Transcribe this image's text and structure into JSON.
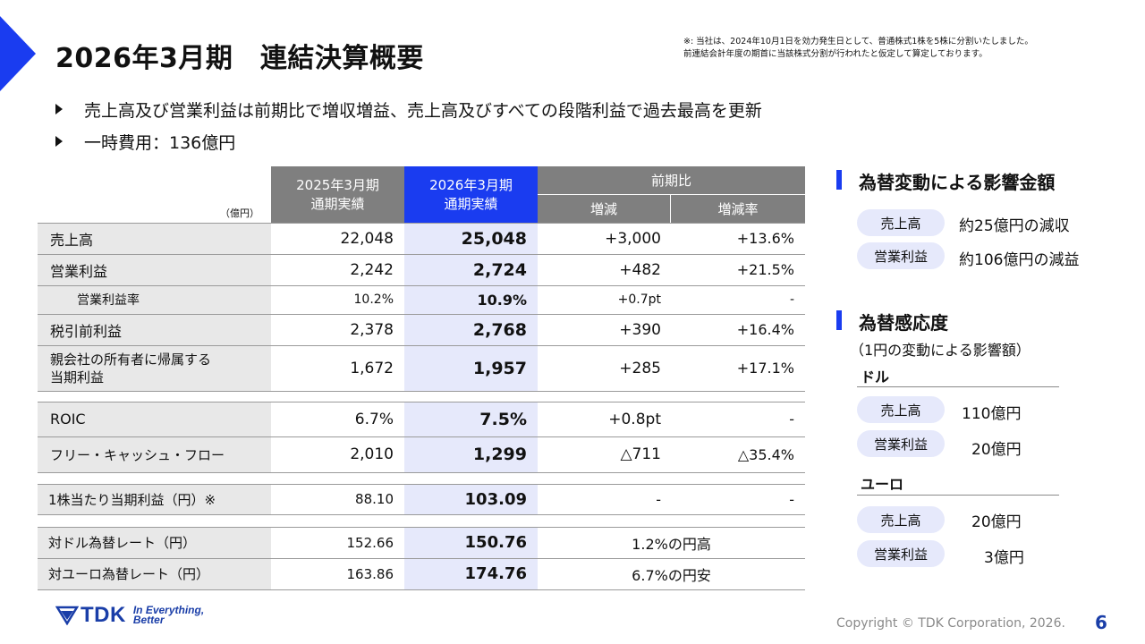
{
  "title": "2026年3月期　連結決算概要",
  "note": [
    "※: 当社は、2024年10月1日を効力発生日として、普通株式1株を5株に分割いたしました。",
    "前連結会計年度の期首に当該株式分割が行われたと仮定して算定しております。"
  ],
  "bullets": [
    "売上高及び営業利益は前期比で増収増益、売上高及びすべての段階利益で過去最高を更新",
    "一時費用：136億円"
  ],
  "table": {
    "unit": "（億円）",
    "header": {
      "prev_line1": "2025年3月期",
      "prev_line2": "通期実績",
      "cur_line1": "2026年3月期",
      "cur_line2": "通期実績",
      "comparison": "前期比",
      "change": "増減",
      "change_rate": "増減率"
    },
    "rows": [
      {
        "label": "売上高",
        "prev": "22,048",
        "cur": "25,048",
        "change": "+3,000",
        "rate": "+13.6%"
      },
      {
        "label": "営業利益",
        "prev": "2,242",
        "cur": "2,724",
        "change": "+482",
        "rate": "+21.5%"
      },
      {
        "label": "営業利益率",
        "prev": "10.2%",
        "cur": "10.9%",
        "change": "+0.7pt",
        "rate": "-"
      },
      {
        "label": "税引前利益",
        "prev": "2,378",
        "cur": "2,768",
        "change": "+390",
        "rate": "+16.4%"
      },
      {
        "label_line1": "親会社の所有者に帰属する",
        "label_line2": "当期利益",
        "prev": "1,672",
        "cur": "1,957",
        "change": "+285",
        "rate": "+17.1%"
      },
      {
        "label": "ROIC",
        "prev": "6.7%",
        "cur": "7.5%",
        "change": "+0.8pt",
        "rate": "-"
      },
      {
        "label": "フリー・キャッシュ・フロー",
        "prev": "2,010",
        "cur": "1,299",
        "change": "△711",
        "rate": "△35.4%"
      },
      {
        "label": "1株当たり当期利益（円）※",
        "prev": "88.10",
        "cur": "103.09",
        "change": "-",
        "rate": "-"
      },
      {
        "label": "対ドル為替レート（円）",
        "prev": "152.66",
        "cur": "150.76",
        "comparison": "1.2%の円高"
      },
      {
        "label": "対ユーロ為替レート（円）",
        "prev": "163.86",
        "cur": "174.76",
        "comparison": "6.7%の円安"
      }
    ]
  },
  "fx_impact": {
    "title": "為替変動による影響金額",
    "items": [
      {
        "label": "売上高",
        "value": "約25億円の減収"
      },
      {
        "label": "営業利益",
        "value": "約106億円の減益"
      }
    ]
  },
  "fx_sensitivity": {
    "title": "為替感応度",
    "subtitle": "（1円の変動による影響額）",
    "usd": {
      "label": "ドル",
      "items": [
        {
          "label": "売上高",
          "value": "110億円"
        },
        {
          "label": "営業利益",
          "value": "20億円"
        }
      ]
    },
    "eur": {
      "label": "ユーロ",
      "items": [
        {
          "label": "売上高",
          "value": "20億円"
        },
        {
          "label": "営業利益",
          "value": "3億円"
        }
      ]
    }
  },
  "footer": {
    "logo_text": "TDK",
    "tagline_line1": "In Everything,",
    "tagline_line2": "Better",
    "copyright": "Copyright  © TDK Corporation, 2026.",
    "page_number": "6"
  },
  "colors": {
    "accent_blue": "#1a3cf0",
    "header_gray": "#7f7f7f",
    "label_bg": "#e8e8e8",
    "current_col_bg": "#e6e9fb",
    "logo_blue": "#1a3ea8"
  }
}
